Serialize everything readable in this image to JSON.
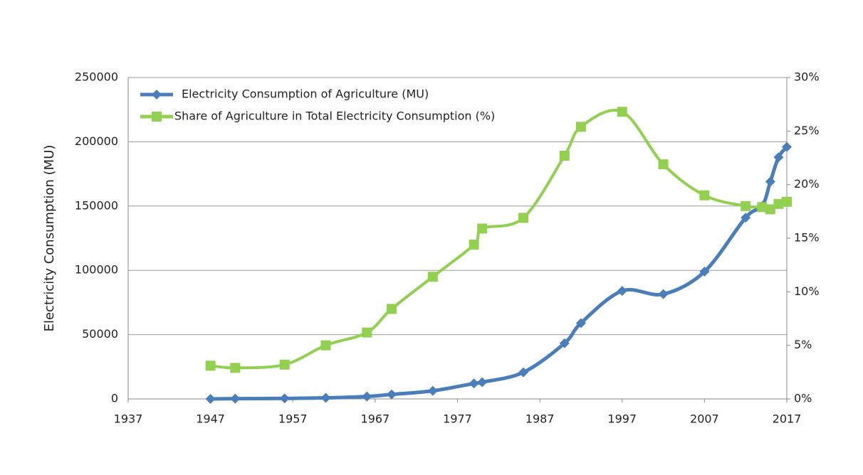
{
  "chart_data": {
    "type": "line",
    "y_label": "Electricity Consumption (MU)",
    "x": [
      1947,
      1950,
      1956,
      1961,
      1966,
      1969,
      1974,
      1979,
      1980,
      1985,
      1990,
      1992,
      1997,
      2002,
      2007,
      2012,
      2014,
      2015,
      2016,
      2017
    ],
    "series": [
      {
        "name": "Electricity Consumption of Agriculture (MU)",
        "color": "#4a7ebb",
        "marker": "diamond",
        "values": [
          0,
          200,
          400,
          800,
          1900,
          3500,
          6300,
          12000,
          13000,
          20700,
          43300,
          59000,
          84000,
          81500,
          99000,
          141000,
          150000,
          169000,
          188000,
          196000
        ]
      },
      {
        "name": "Share of Agriculture in Total Electricity Consumption (%)",
        "color": "#92d050",
        "marker": "square",
        "axis": "y2",
        "values": [
          3.1,
          2.9,
          3.2,
          5.0,
          6.2,
          8.4,
          11.4,
          14.4,
          15.9,
          16.9,
          22.7,
          25.4,
          26.8,
          21.9,
          19.0,
          18.0,
          17.9,
          17.7,
          18.2,
          18.4
        ]
      }
    ],
    "xlim": [
      1937,
      2017
    ],
    "xticks": [
      1937,
      1947,
      1957,
      1967,
      1977,
      1987,
      1997,
      2007,
      2017
    ],
    "ylim": [
      0,
      250000
    ],
    "yticks": [
      0,
      50000,
      100000,
      150000,
      200000,
      250000
    ],
    "y2lim": [
      0,
      30
    ],
    "y2ticks": [
      {
        "value": 0,
        "label": "0%"
      },
      {
        "value": 5,
        "label": "5%"
      },
      {
        "value": 10,
        "label": "10%"
      },
      {
        "value": 15,
        "label": "15%"
      },
      {
        "value": 20,
        "label": "20%"
      },
      {
        "value": 25,
        "label": "25%"
      },
      {
        "value": 30,
        "label": "30%"
      }
    ],
    "grid": true,
    "legend": "top-left"
  }
}
